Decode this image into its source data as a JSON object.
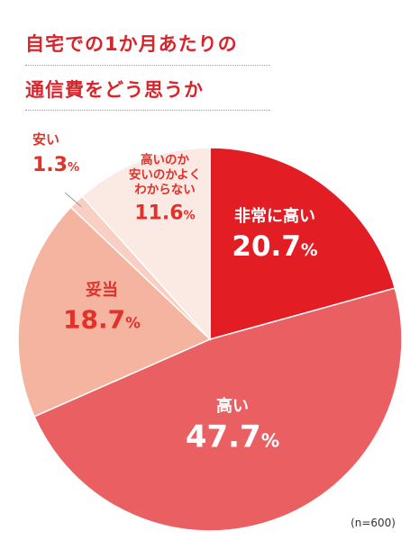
{
  "title_lines": [
    "自宅での1か月あたりの",
    "通信費をどう思うか"
  ],
  "sample_note": "(n=600)",
  "chart_data": {
    "type": "pie",
    "title": "自宅での1か月あたりの通信費をどう思うか",
    "start_at": "12 o'clock, clockwise",
    "slices": [
      {
        "label": "非常に高い",
        "value": 20.7,
        "display": "20.7",
        "color": "#e21d23",
        "text_color": "#ffffff"
      },
      {
        "label": "高い",
        "value": 47.7,
        "display": "47.7",
        "color": "#ea6062",
        "text_color": "#ffffff"
      },
      {
        "label": "妥当",
        "value": 18.7,
        "display": "18.7",
        "color": "#f4b4a0",
        "text_color": "#e2312b"
      },
      {
        "label": "安い",
        "value": 1.3,
        "display": "1.3",
        "color": "#f8cfc2",
        "text_color": "#e2312b"
      },
      {
        "label": "高いのか安いのかよくわからない",
        "label_lines": [
          "高いのか",
          "安いのかよく",
          "わからない"
        ],
        "value": 11.6,
        "display": "11.6",
        "color": "#fbe9e3",
        "text_color": "#e2312b"
      }
    ],
    "percent_sign": "%"
  }
}
